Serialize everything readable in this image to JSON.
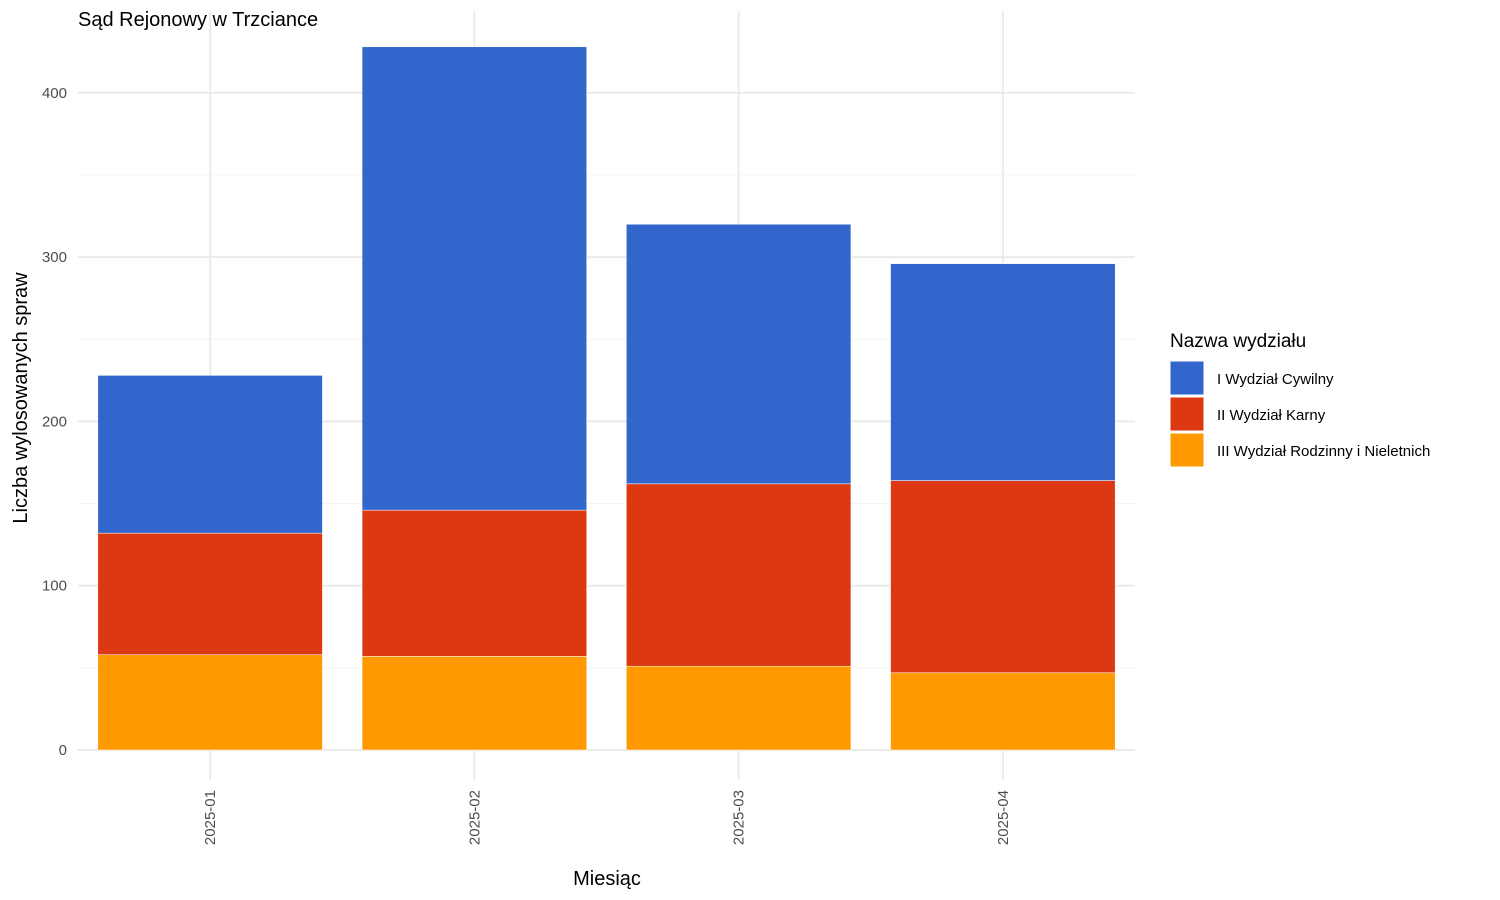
{
  "chart_data": {
    "type": "bar",
    "stacked": true,
    "title": "Sąd Rejonowy w Trzciance",
    "xlabel": "Miesiąc",
    "ylabel": "Liczba wylosowanych spraw",
    "categories": [
      "2025-01",
      "2025-02",
      "2025-03",
      "2025-04"
    ],
    "yticks": [
      0,
      100,
      200,
      300,
      400
    ],
    "ylim": [
      0,
      435
    ],
    "grid": true,
    "legend": {
      "title": "Nazwa wydziału",
      "position": "right"
    },
    "series": [
      {
        "name": "III Wydział Rodzinny i Nieletnich",
        "color": "#FF9900",
        "values": [
          58,
          57,
          51,
          47
        ]
      },
      {
        "name": "II Wydział Karny",
        "color": "#DC3912",
        "values": [
          74,
          89,
          111,
          117
        ]
      },
      {
        "name": "I Wydział Cywilny",
        "color": "#3366CC",
        "values": [
          96,
          282,
          158,
          132
        ]
      }
    ],
    "legend_order": [
      "I Wydział Cywilny",
      "II Wydział Karny",
      "III Wydział Rodzinny i Nieletnich"
    ]
  }
}
